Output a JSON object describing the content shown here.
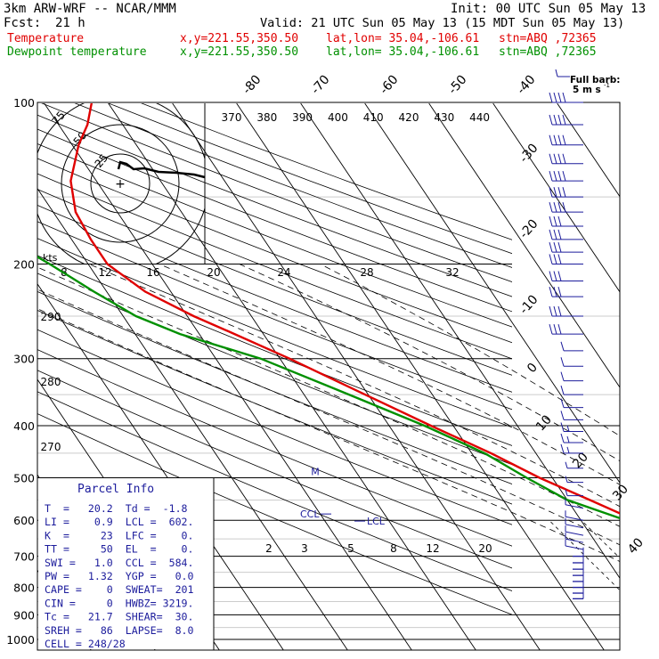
{
  "header": {
    "model": "3km ARW-WRF -- NCAR/MMM",
    "init": "Init: 00 UTC Sun 05 May 13",
    "fcst_label": "Fcst:",
    "fcst_value": "21 h",
    "valid": "Valid: 21 UTC Sun 05 May 13 (15 MDT Sun 05 May 13)",
    "temp_label": "Temperature",
    "temp_loc": "x,y=221.55,350.50",
    "temp_latlon": "lat,lon= 35.04,-106.61",
    "temp_stn": "stn=ABQ ,72365",
    "dew_label": "Dewpoint temperature",
    "dew_loc": "x,y=221.55,350.50",
    "dew_latlon": "lat,lon= 35.04,-106.61",
    "dew_stn": "stn=ABQ ,72365"
  },
  "barb_legend": {
    "line1": "Full barb:",
    "line2": "5 m s"
  },
  "colors": {
    "temperature": "#e00000",
    "dewpoint": "#009000",
    "text_blue": "#1c1c9c",
    "wind": "#1c1c9c",
    "grid": "#000000"
  },
  "chart_data": {
    "type": "line",
    "y_axis": {
      "label": "Pressure (hPa)",
      "scale": "log",
      "range": [
        1000,
        100
      ],
      "ticks": [
        100,
        200,
        300,
        400,
        500,
        600,
        700,
        800,
        900,
        1000
      ]
    },
    "isotherm_labels": [
      "-80",
      "-70",
      "-60",
      "-50",
      "-40",
      "-30",
      "-20",
      "-10",
      "0",
      "10",
      "20",
      "30",
      "40"
    ],
    "theta_labels": [
      "370",
      "380",
      "390",
      "400",
      "410",
      "420",
      "430",
      "440"
    ],
    "theta_left_labels": [
      "290",
      "280",
      "270"
    ],
    "mixing_ratio_labels": [
      "2",
      "3",
      "5",
      "8",
      "12",
      "20"
    ],
    "speed_labels": [
      "8",
      "12",
      "16",
      "20",
      "24",
      "28",
      "32"
    ],
    "kts_label": "kts",
    "hodograph": {
      "ring_labels": [
        "25",
        "50",
        "75"
      ],
      "center_mark": "+"
    },
    "series": [
      {
        "name": "Temperature",
        "points": [
          [
            845,
            25.5
          ],
          [
            800,
            19
          ],
          [
            750,
            13
          ],
          [
            700,
            8
          ],
          [
            650,
            3.5
          ],
          [
            600,
            -1.5
          ],
          [
            550,
            -6.5
          ],
          [
            500,
            -12
          ],
          [
            450,
            -17
          ],
          [
            400,
            -23.5
          ],
          [
            350,
            -30.5
          ],
          [
            300,
            -38.5
          ],
          [
            270,
            -44.5
          ],
          [
            250,
            -49
          ],
          [
            225,
            -54
          ],
          [
            200,
            -57
          ],
          [
            180,
            -57
          ],
          [
            160,
            -56.5
          ],
          [
            140,
            -54
          ],
          [
            120,
            -49
          ],
          [
            110,
            -45.5
          ],
          [
            100,
            -42.5
          ]
        ]
      },
      {
        "name": "Dewpoint temperature",
        "points": [
          [
            845,
            1
          ],
          [
            800,
            1
          ],
          [
            750,
            1.5
          ],
          [
            700,
            0
          ],
          [
            650,
            -1.5
          ],
          [
            600,
            -3
          ],
          [
            550,
            -10
          ],
          [
            500,
            -14
          ],
          [
            450,
            -18
          ],
          [
            400,
            -24.5
          ],
          [
            350,
            -33
          ],
          [
            300,
            -43
          ],
          [
            270,
            -53
          ],
          [
            250,
            -58
          ],
          [
            225,
            -62
          ],
          [
            200,
            -66
          ],
          [
            180,
            -70
          ],
          [
            160,
            -72
          ],
          [
            140,
            -74
          ],
          [
            120,
            -75
          ],
          [
            110,
            -76
          ],
          [
            100,
            -77
          ]
        ]
      }
    ],
    "markers": [
      {
        "label": "M",
        "p": 487
      },
      {
        "label": "CCL",
        "p": 584
      },
      {
        "label": "LCL",
        "p": 602
      }
    ],
    "wind_barbs_pressure": [
      100,
      110,
      120,
      130,
      140,
      150,
      160,
      170,
      180,
      190,
      200,
      215,
      230,
      250,
      270,
      290,
      310,
      330,
      350,
      370,
      390,
      410,
      430,
      450,
      480,
      510,
      540,
      570,
      600,
      620,
      640,
      660,
      680,
      700,
      720,
      740,
      760,
      780,
      800,
      820,
      840
    ]
  },
  "parcel_info": {
    "title": "Parcel Info",
    "rows": [
      "T  =   20.2  Td =  -1.8",
      "LI =    0.9  LCL =  602.",
      "K  =     23  LFC =    0.",
      "TT =     50  EL  =    0.",
      "SWI =   1.0  CCL =  584.",
      "PW =   1.32  YGP =   0.0",
      "CAPE =    0  SWEAT=  201",
      "CIN =     0  HWBZ= 3219.",
      "Tc =   21.7  SHEAR=  30.",
      "SREH =   86  LAPSE=  8.0",
      "CELL = 248/28"
    ]
  }
}
